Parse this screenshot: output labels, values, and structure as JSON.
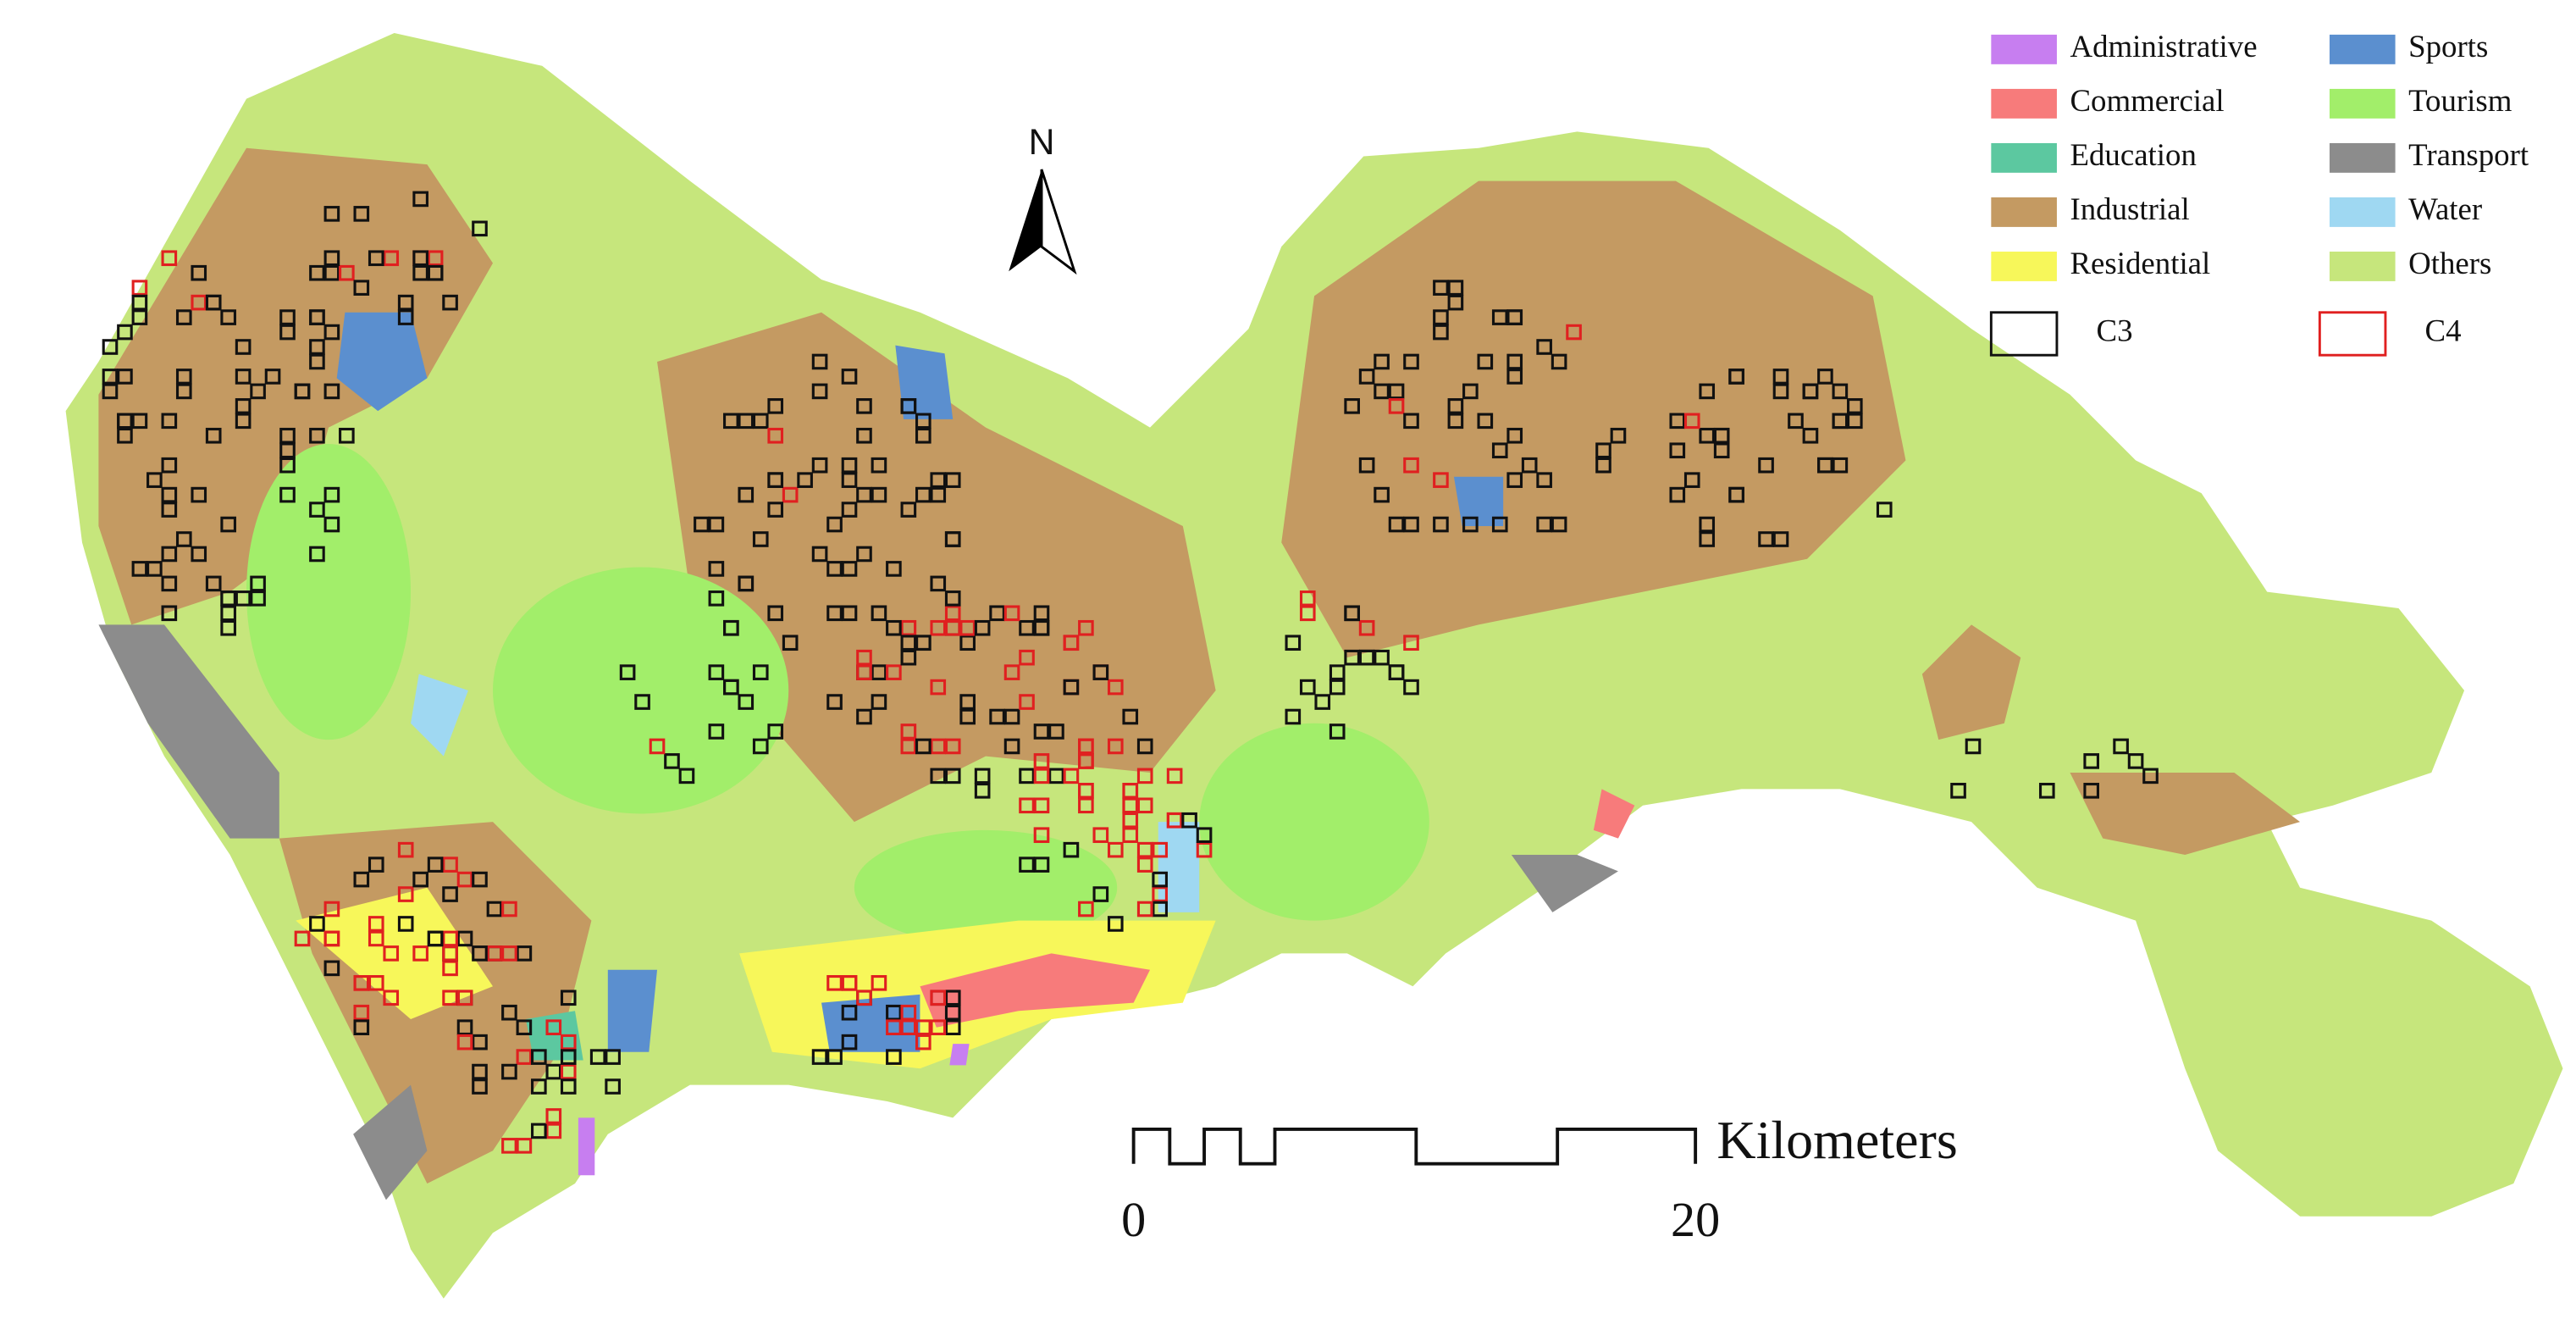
{
  "legend": {
    "items": [
      {
        "label": "Administrative",
        "color": "#c77ef0"
      },
      {
        "label": "Commercial",
        "color": "#f77b7b"
      },
      {
        "label": "Education",
        "color": "#5cc8a0"
      },
      {
        "label": "Industrial",
        "color": "#c49a62"
      },
      {
        "label": "Residential",
        "color": "#f7f75a"
      },
      {
        "label": "Sports",
        "color": "#5b8fcf"
      },
      {
        "label": "Tourism",
        "color": "#a2ee6a"
      },
      {
        "label": "Transport",
        "color": "#8c8c8c"
      },
      {
        "label": "Water",
        "color": "#9fd8f2"
      },
      {
        "label": "Others",
        "color": "#c6e67c"
      }
    ],
    "cells": [
      {
        "label": "C3",
        "color": "#111111"
      },
      {
        "label": "C4",
        "color": "#e02020"
      }
    ]
  },
  "north_arrow": {
    "label": "N"
  },
  "scale_bar": {
    "labels": [
      "0",
      "20"
    ],
    "unit": "Kilometers"
  }
}
